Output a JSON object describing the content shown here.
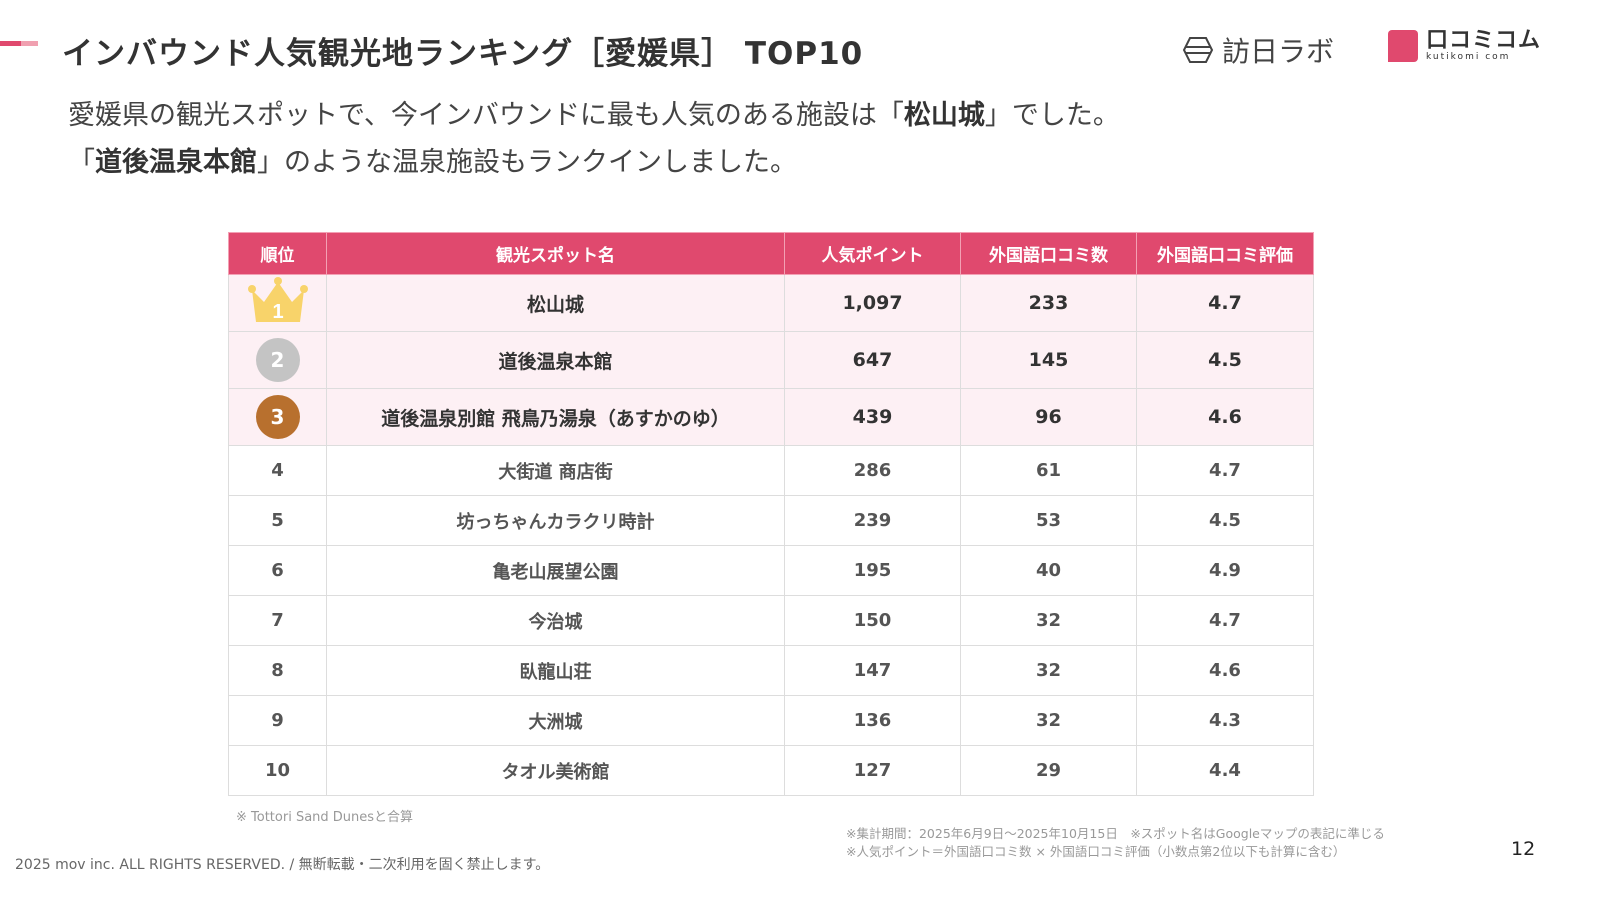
{
  "title": "インバウンド人気観光地ランキング［愛媛県］ TOP10",
  "logos": {
    "houjin": "訪日ラボ",
    "kutikomi": "口コミコム",
    "kutikomi_sub": "kutikomi com"
  },
  "lead": {
    "line1_pre": "愛媛県の観光スポットで、今インバウンドに最も人気のある施設は「",
    "line1_bold": "松山城",
    "line1_post": "」でした。",
    "line2_pre": "「",
    "line2_bold": "道後温泉本館",
    "line2_post": "」のような温泉施設もランクインしました。"
  },
  "colors": {
    "accent": "#e0496e",
    "gold": "#f8d36a",
    "silver": "#c4c4c4",
    "bronze": "#b8702e"
  },
  "table": {
    "headers": [
      "順位",
      "観光スポット名",
      "人気ポイント",
      "外国語口コミ数",
      "外国語口コミ評価"
    ],
    "rows": [
      {
        "rank": "1",
        "name": "松山城",
        "points": "1,097",
        "reviews": "233",
        "rating": "4.7"
      },
      {
        "rank": "2",
        "name": "道後温泉本館",
        "points": "647",
        "reviews": "145",
        "rating": "4.5"
      },
      {
        "rank": "3",
        "name": "道後温泉別館 飛鳥乃湯泉（あすかのゆ）",
        "points": "439",
        "reviews": "96",
        "rating": "4.6"
      },
      {
        "rank": "4",
        "name": "大街道 商店街",
        "points": "286",
        "reviews": "61",
        "rating": "4.7"
      },
      {
        "rank": "5",
        "name": "坊っちゃんカラクリ時計",
        "points": "239",
        "reviews": "53",
        "rating": "4.5"
      },
      {
        "rank": "6",
        "name": "亀老山展望公園",
        "points": "195",
        "reviews": "40",
        "rating": "4.9"
      },
      {
        "rank": "7",
        "name": "今治城",
        "points": "150",
        "reviews": "32",
        "rating": "4.7"
      },
      {
        "rank": "8",
        "name": "臥龍山荘",
        "points": "147",
        "reviews": "32",
        "rating": "4.6"
      },
      {
        "rank": "9",
        "name": "大洲城",
        "points": "136",
        "reviews": "32",
        "rating": "4.3"
      },
      {
        "rank": "10",
        "name": "タオル美術館",
        "points": "127",
        "reviews": "29",
        "rating": "4.4"
      }
    ]
  },
  "notes": {
    "table_note": "※ Tottori Sand Dunesと合算",
    "period": "※集計期間：2025年6月9日〜2025年10月15日　※スポット名はGoogleマップの表記に準じる",
    "formula": "※人気ポイント＝外国語口コミ数 × 外国語口コミ評価（小数点第2位以下も計算に含む）"
  },
  "footer": {
    "copyright": "2025 mov inc. ALL RIGHTS RESERVED. / 無断転載・二次利用を固く禁止します。",
    "page": "12"
  }
}
